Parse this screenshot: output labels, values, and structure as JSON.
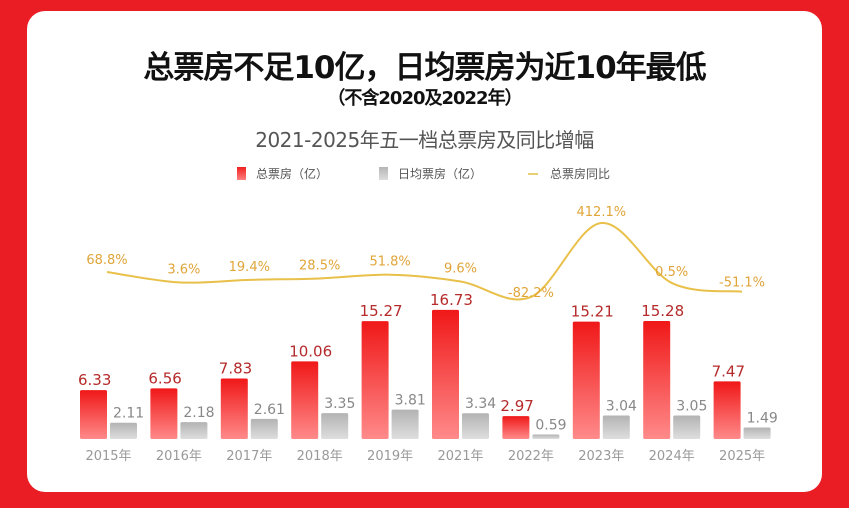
{
  "header": {
    "headline": "总票房不足10亿，日均票房为近10年最低",
    "subhead": "（不含2020及2022年）"
  },
  "colors": {
    "background": "#ea1c24",
    "bar_total": "#f02020",
    "bar_daily": "#bdbdbd",
    "line_yoy": "#e8c04a",
    "line_label": "#e0a53a"
  },
  "chart_data": {
    "type": "bar",
    "title": "2021-2025年五一档总票房及同比增幅",
    "xlabel": "",
    "ylabel": "",
    "legend_position": "top-center",
    "categories": [
      "2015年",
      "2016年",
      "2017年",
      "2018年",
      "2019年",
      "2021年",
      "2022年",
      "2023年",
      "2024年",
      "2025年"
    ],
    "series": [
      {
        "name": "总票房（亿）",
        "kind": "bar",
        "values": [
          6.33,
          6.56,
          7.83,
          10.06,
          15.27,
          16.73,
          2.97,
          15.21,
          15.28,
          7.47
        ],
        "labels": [
          "6.33",
          "6.56",
          "7.83",
          "10.06",
          "15.27",
          "16.73",
          "2.97",
          "15.21",
          "15.28",
          "7.47"
        ]
      },
      {
        "name": "日均票房（亿）",
        "kind": "bar",
        "values": [
          2.11,
          2.18,
          2.61,
          3.35,
          3.81,
          3.34,
          0.59,
          3.04,
          3.05,
          1.49
        ],
        "labels": [
          "2.11",
          "2.18",
          "2.61",
          "3.35",
          "3.81",
          "3.34",
          "0.59",
          "3.04",
          "3.05",
          "1.49"
        ]
      },
      {
        "name": "总票房同比",
        "kind": "line",
        "values": [
          68.8,
          3.6,
          19.4,
          28.5,
          51.8,
          9.6,
          -82.2,
          412.1,
          0.5,
          -51.1
        ],
        "labels": [
          "68.8%",
          "3.6%",
          "19.4%",
          "28.5%",
          "51.8%",
          "9.6%",
          "-82.2%",
          "412.1%",
          "0.5%",
          "-51.1%"
        ]
      }
    ],
    "ylim": [
      0,
      18
    ],
    "grid": false
  }
}
